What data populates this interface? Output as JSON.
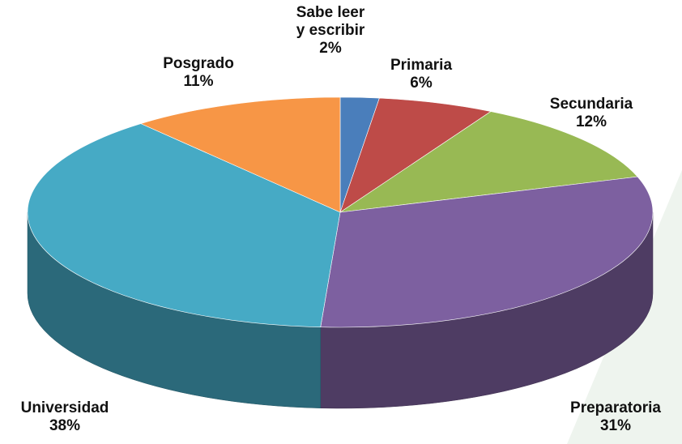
{
  "chart_data": {
    "type": "pie3d",
    "categories": [
      "Sabe leer y escribir",
      "Primaria",
      "Secundaria",
      "Preparatoria",
      "Universidad",
      "Posgrado"
    ],
    "values": [
      2,
      6,
      12,
      31,
      38,
      11
    ],
    "value_labels": [
      "2%",
      "6%",
      "12%",
      "31%",
      "38%",
      "11%"
    ],
    "colors": [
      "#4a7ebb",
      "#be4b48",
      "#98b954",
      "#7d60a0",
      "#46aac5",
      "#f79646"
    ]
  }
}
